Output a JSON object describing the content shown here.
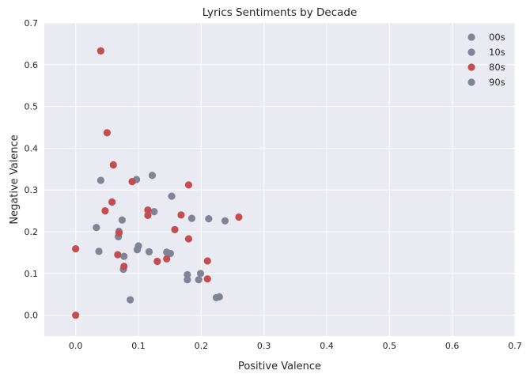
{
  "chart_data": {
    "type": "scatter",
    "title": "Lyrics Sentiments by Decade",
    "xlabel": "Positive Valence",
    "ylabel": "Negative  Valence",
    "xlim": [
      -0.05,
      0.7
    ],
    "ylim": [
      -0.05,
      0.7
    ],
    "xticks": [
      "0.0",
      "0.1",
      "0.2",
      "0.3",
      "0.4",
      "0.5",
      "0.6",
      "0.7"
    ],
    "yticks": [
      "0.0",
      "0.1",
      "0.2",
      "0.3",
      "0.4",
      "0.5",
      "0.6",
      "0.7"
    ],
    "grid": true,
    "background": "#eaeaf2",
    "legend_position": "top-right",
    "series": [
      {
        "name": "00s",
        "color": "#808497",
        "points": [
          [
            0.033,
            0.21
          ],
          [
            0.037,
            0.153
          ],
          [
            0.04,
            0.323
          ],
          [
            0.068,
            0.188
          ],
          [
            0.069,
            0.201
          ],
          [
            0.074,
            0.228
          ],
          [
            0.077,
            0.141
          ],
          [
            0.098,
            0.157
          ],
          [
            0.1,
            0.166
          ],
          [
            0.117,
            0.152
          ],
          [
            0.122,
            0.335
          ],
          [
            0.153,
            0.285
          ],
          [
            0.145,
            0.151
          ],
          [
            0.178,
            0.097
          ],
          [
            0.178,
            0.085
          ],
          [
            0.185,
            0.232
          ],
          [
            0.196,
            0.085
          ],
          [
            0.199,
            0.1
          ],
          [
            0.212,
            0.231
          ],
          [
            0.238,
            0.226
          ],
          [
            0.224,
            0.042
          ],
          [
            0.229,
            0.044
          ]
        ]
      },
      {
        "name": "10s",
        "color": "#808497",
        "points": [
          [
            0.076,
            0.11
          ],
          [
            0.087,
            0.037
          ],
          [
            0.097,
            0.325
          ],
          [
            0.125,
            0.248
          ],
          [
            0.151,
            0.148
          ]
        ]
      },
      {
        "name": "80s",
        "color": "#c34e52",
        "points": [
          [
            0.0,
            0.159
          ],
          [
            0.0,
            0.0
          ],
          [
            0.04,
            0.633
          ],
          [
            0.05,
            0.437
          ],
          [
            0.06,
            0.36
          ],
          [
            0.058,
            0.271
          ],
          [
            0.047,
            0.25
          ],
          [
            0.069,
            0.197
          ],
          [
            0.067,
            0.145
          ],
          [
            0.077,
            0.117
          ],
          [
            0.09,
            0.32
          ],
          [
            0.115,
            0.252
          ],
          [
            0.115,
            0.239
          ],
          [
            0.13,
            0.129
          ],
          [
            0.145,
            0.135
          ],
          [
            0.158,
            0.205
          ],
          [
            0.168,
            0.24
          ],
          [
            0.18,
            0.312
          ],
          [
            0.18,
            0.183
          ],
          [
            0.21,
            0.13
          ],
          [
            0.21,
            0.087
          ],
          [
            0.26,
            0.235
          ]
        ]
      },
      {
        "name": "90s",
        "color": "#808497",
        "points": []
      }
    ]
  }
}
